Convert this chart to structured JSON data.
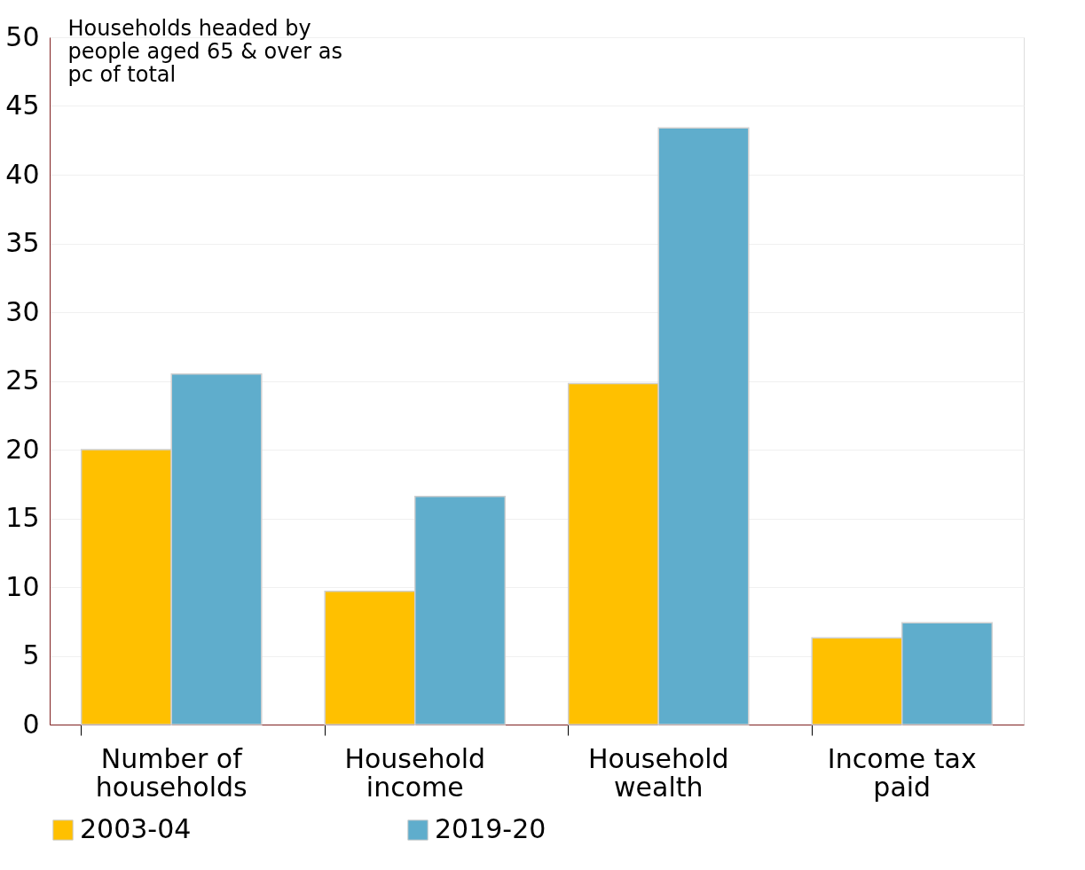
{
  "chart_data": {
    "type": "bar",
    "ylabel": "Households headed by people aged 65 & over as pc of total",
    "categories": [
      "Number of households",
      "Household income",
      "Household wealth",
      "Income tax paid"
    ],
    "series": [
      {
        "name": "2003-04",
        "color": "#ffc000",
        "values": [
          20,
          9.7,
          24.8,
          6.3
        ]
      },
      {
        "name": "2019-20",
        "color": "#5fadcc",
        "values": [
          25.5,
          16.6,
          43.4,
          7.4
        ]
      }
    ],
    "ylim": [
      0,
      50
    ],
    "yticks": [
      0,
      5,
      10,
      15,
      20,
      25,
      30,
      35,
      40,
      45,
      50
    ],
    "grid": "y",
    "legend": "bottom"
  }
}
